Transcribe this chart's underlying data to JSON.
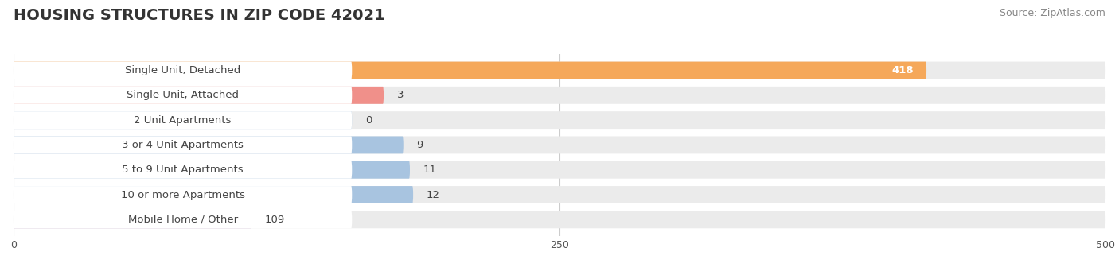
{
  "title": "HOUSING STRUCTURES IN ZIP CODE 42021",
  "source": "Source: ZipAtlas.com",
  "categories": [
    "Single Unit, Detached",
    "Single Unit, Attached",
    "2 Unit Apartments",
    "3 or 4 Unit Apartments",
    "5 to 9 Unit Apartments",
    "10 or more Apartments",
    "Mobile Home / Other"
  ],
  "values": [
    418,
    3,
    0,
    9,
    11,
    12,
    109
  ],
  "bar_colors": [
    "#F5A85A",
    "#F0908A",
    "#A8C4E0",
    "#A8C4E0",
    "#A8C4E0",
    "#A8C4E0",
    "#C4A8C8"
  ],
  "xlim": [
    0,
    500
  ],
  "xticks": [
    0,
    250,
    500
  ],
  "background_color": "#ffffff",
  "row_bg_color": "#ebebeb",
  "title_fontsize": 14,
  "source_fontsize": 9,
  "label_fontsize": 9.5,
  "value_fontsize": 9.5,
  "label_in_bar_threshold": 200,
  "min_bar_display": 60
}
